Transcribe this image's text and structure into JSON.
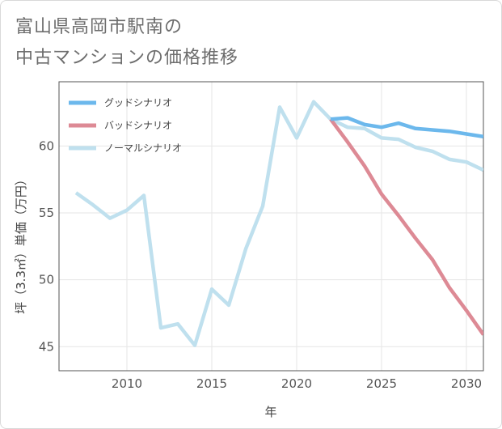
{
  "title_line1": "富山県高岡市駅南の",
  "title_line2": "中古マンションの価格推移",
  "chart_data": {
    "type": "line",
    "xlabel": "年",
    "ylabel": "坪（3.3㎡）単価（万円）",
    "xlim": [
      2006,
      2031
    ],
    "ylim": [
      43.2,
      64.8
    ],
    "xticks": [
      2010,
      2015,
      2020,
      2025,
      2030
    ],
    "yticks": [
      45,
      50,
      55,
      60
    ],
    "grid": true,
    "legend_position": "top-left",
    "series": [
      {
        "name": "グッドシナリオ",
        "color": "#6cb8ec",
        "x": [
          2022,
          2023,
          2024,
          2025,
          2026,
          2027,
          2028,
          2029,
          2030,
          2031
        ],
        "values": [
          62.0,
          62.1,
          61.6,
          61.4,
          61.7,
          61.3,
          61.2,
          61.1,
          60.9,
          60.7
        ]
      },
      {
        "name": "バッドシナリオ",
        "color": "#dd8a95",
        "x": [
          2022,
          2023,
          2024,
          2025,
          2026,
          2027,
          2028,
          2029,
          2030,
          2031
        ],
        "values": [
          62.0,
          60.3,
          58.5,
          56.4,
          54.8,
          53.1,
          51.5,
          49.4,
          47.7,
          45.9
        ]
      },
      {
        "name": "ノーマルシナリオ",
        "color": "#bfe0ee",
        "x": [
          2007,
          2008,
          2009,
          2010,
          2011,
          2012,
          2013,
          2014,
          2015,
          2016,
          2017,
          2018,
          2019,
          2020,
          2021,
          2022,
          2023,
          2024,
          2025,
          2026,
          2027,
          2028,
          2029,
          2030,
          2031
        ],
        "values": [
          56.5,
          55.6,
          54.6,
          55.2,
          56.3,
          46.4,
          46.7,
          45.1,
          49.3,
          48.1,
          52.3,
          55.5,
          62.9,
          60.6,
          63.3,
          62.0,
          61.4,
          61.3,
          60.6,
          60.5,
          59.9,
          59.6,
          59.0,
          58.8,
          58.2
        ]
      }
    ]
  }
}
